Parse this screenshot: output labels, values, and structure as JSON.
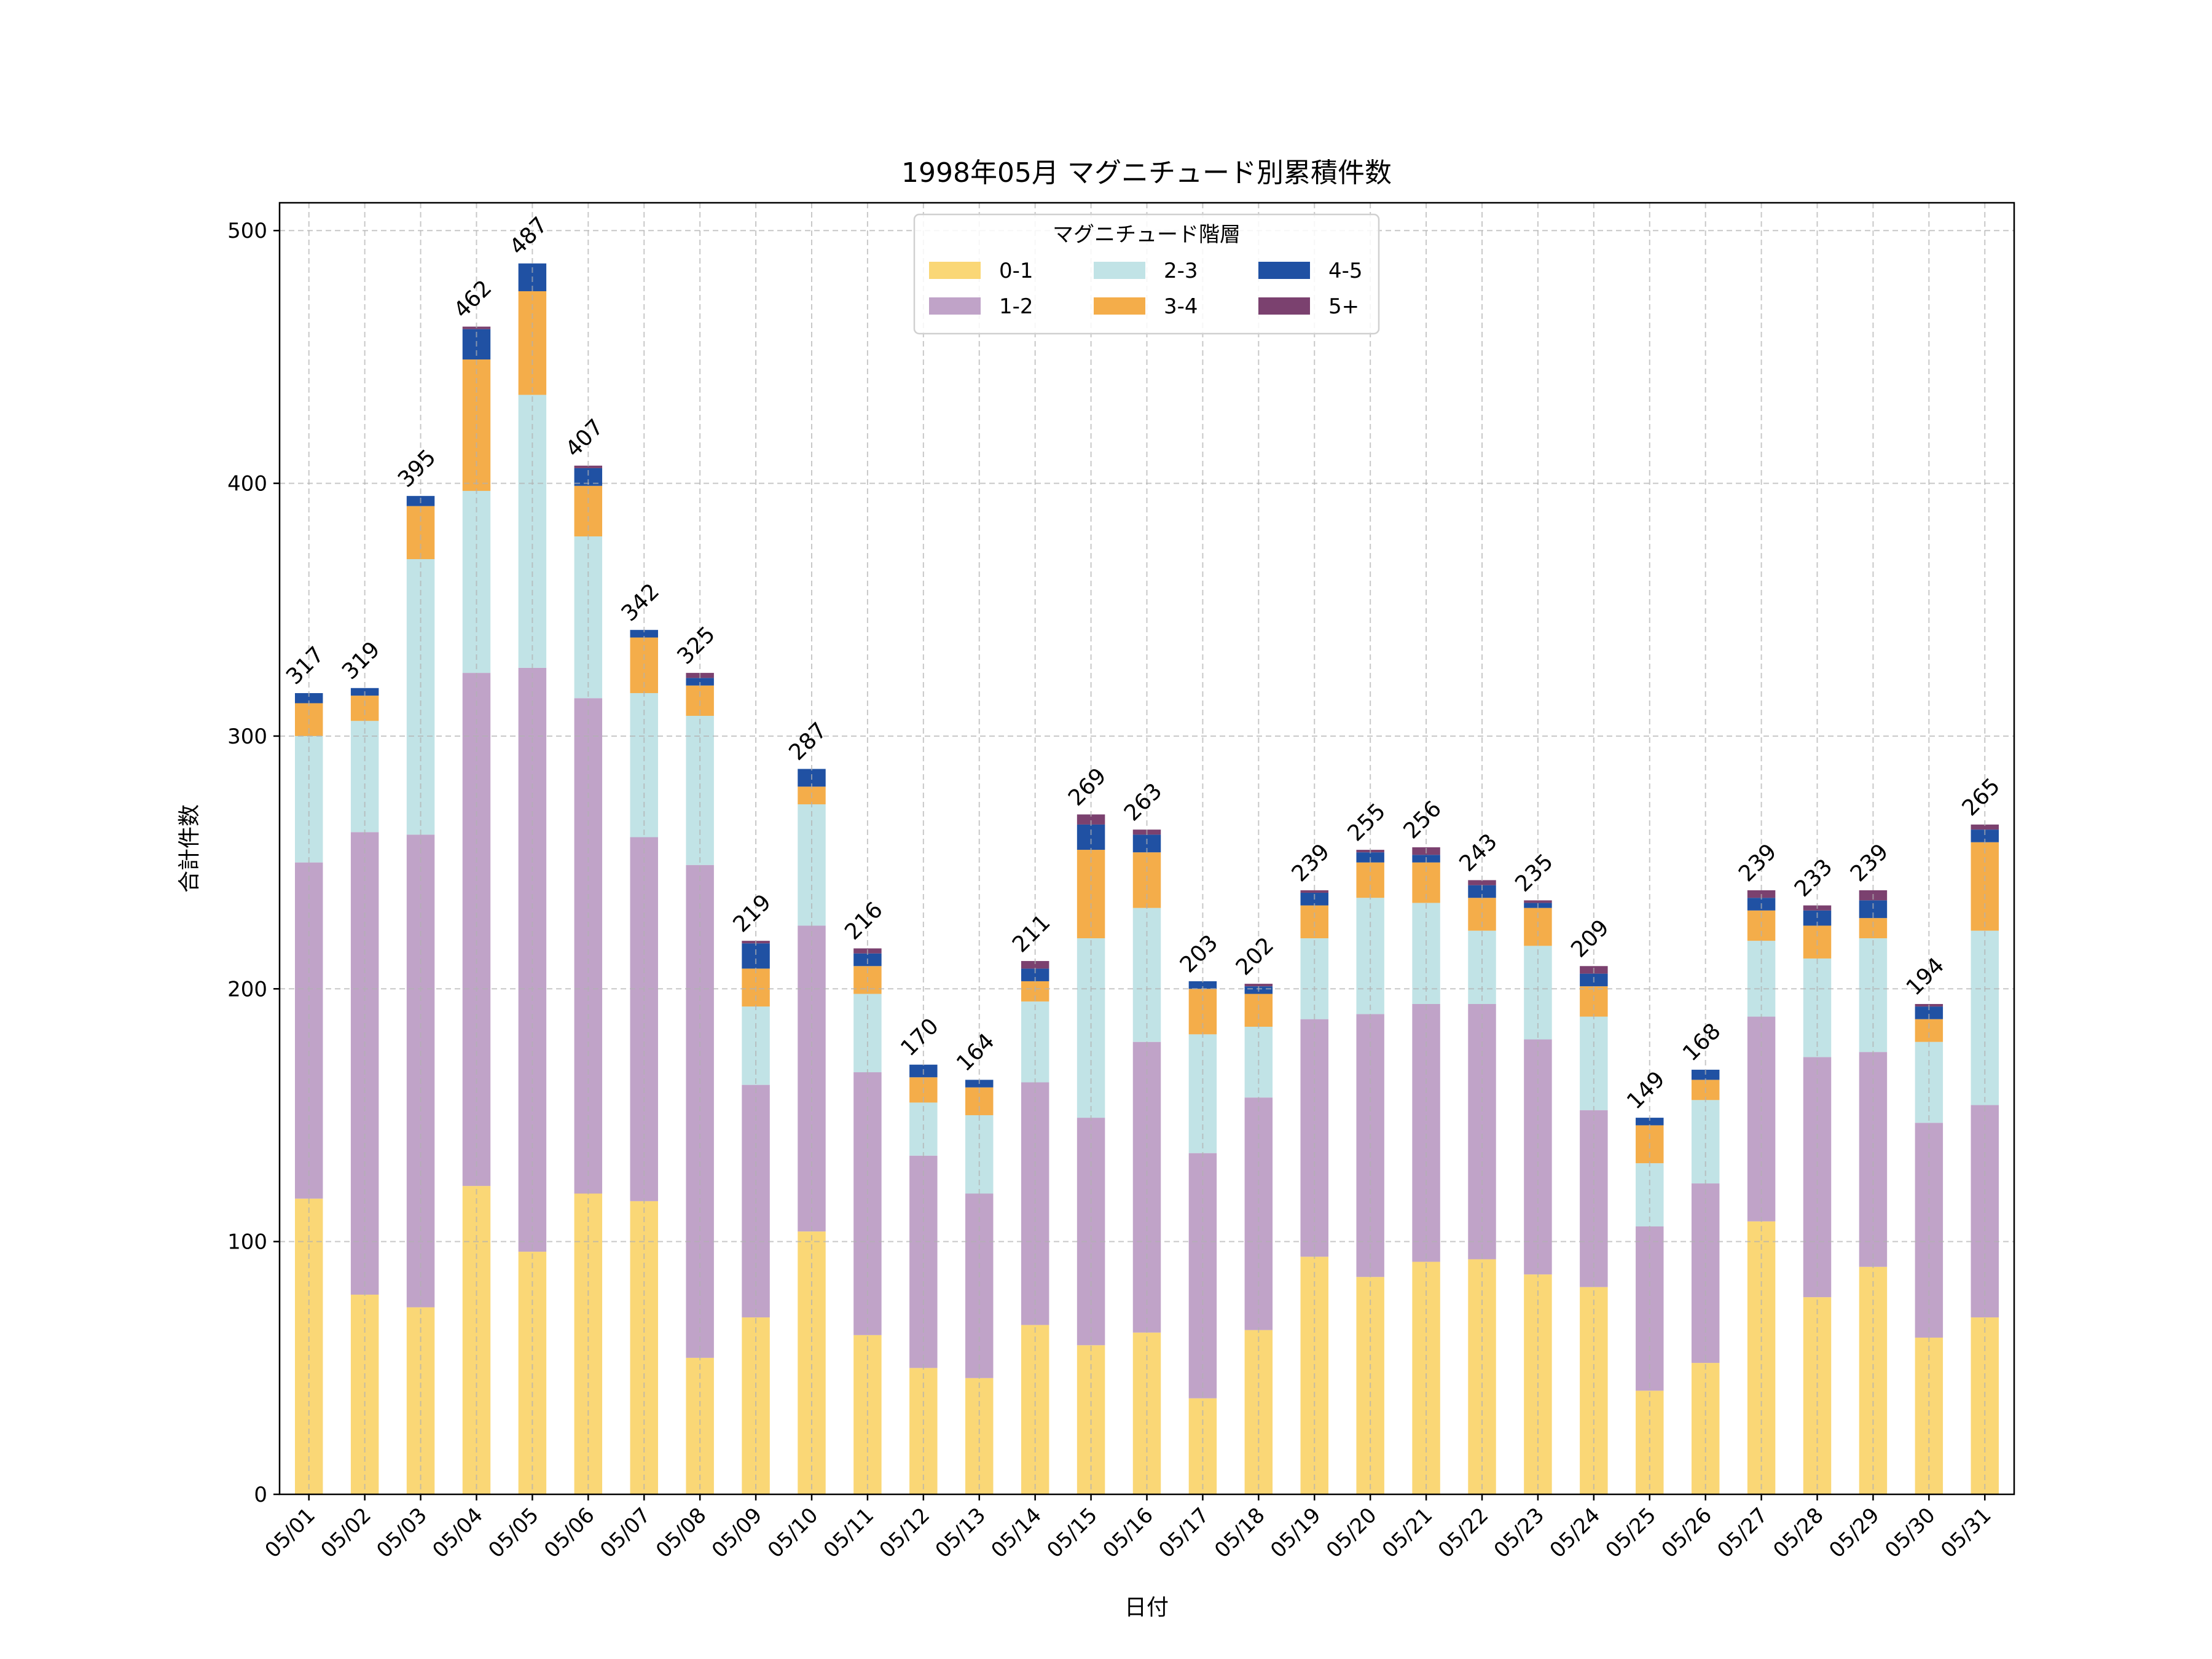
{
  "chart_data": {
    "type": "bar",
    "stacked": true,
    "title": "1998年05月 マグニチュード別累積件数",
    "xlabel": "日付",
    "ylabel": "合計件数",
    "ylim": [
      0,
      511
    ],
    "yticks": [
      0,
      100,
      200,
      300,
      400,
      500
    ],
    "grid": true,
    "legend": {
      "title": "マグニチュード階層",
      "placement": "top-center",
      "columns": 3
    },
    "categories": [
      "05/01",
      "05/02",
      "05/03",
      "05/04",
      "05/05",
      "05/06",
      "05/07",
      "05/08",
      "05/09",
      "05/10",
      "05/11",
      "05/12",
      "05/13",
      "05/14",
      "05/15",
      "05/16",
      "05/17",
      "05/18",
      "05/19",
      "05/20",
      "05/21",
      "05/22",
      "05/23",
      "05/24",
      "05/25",
      "05/26",
      "05/27",
      "05/28",
      "05/29",
      "05/30",
      "05/31"
    ],
    "series": [
      {
        "name": "0-1",
        "color": "#fad776",
        "values": [
          117,
          79,
          74,
          122,
          96,
          119,
          116,
          54,
          70,
          104,
          63,
          50,
          46,
          67,
          59,
          64,
          38,
          65,
          94,
          86,
          92,
          93,
          87,
          82,
          41,
          52,
          108,
          78,
          90,
          62,
          70
        ]
      },
      {
        "name": "1-2",
        "color": "#c0a3c8",
        "values": [
          133,
          183,
          187,
          203,
          231,
          196,
          144,
          195,
          92,
          121,
          104,
          84,
          73,
          96,
          90,
          115,
          97,
          92,
          94,
          104,
          102,
          101,
          93,
          70,
          65,
          71,
          81,
          95,
          85,
          85,
          84
        ]
      },
      {
        "name": "2-3",
        "color": "#c1e3e6",
        "values": [
          50,
          44,
          109,
          72,
          108,
          64,
          57,
          59,
          31,
          48,
          31,
          21,
          31,
          32,
          71,
          53,
          47,
          28,
          32,
          46,
          40,
          29,
          37,
          37,
          25,
          33,
          30,
          39,
          45,
          32,
          69
        ]
      },
      {
        "name": "3-4",
        "color": "#f4ad4a",
        "values": [
          13,
          10,
          21,
          52,
          41,
          20,
          22,
          12,
          15,
          7,
          11,
          10,
          11,
          8,
          35,
          22,
          18,
          13,
          13,
          14,
          16,
          13,
          15,
          12,
          15,
          8,
          12,
          13,
          8,
          9,
          35
        ]
      },
      {
        "name": "4-5",
        "color": "#2051a3",
        "values": [
          4,
          3,
          4,
          12,
          11,
          7,
          3,
          3,
          10,
          7,
          5,
          5,
          3,
          5,
          10,
          7,
          3,
          3,
          5,
          4,
          3,
          5,
          2,
          5,
          3,
          4,
          5,
          6,
          7,
          5,
          5
        ]
      },
      {
        "name": "5+",
        "color": "#7b416f",
        "values": [
          0,
          0,
          0,
          1,
          0,
          1,
          0,
          2,
          1,
          0,
          2,
          0,
          0,
          3,
          4,
          2,
          0,
          1,
          1,
          1,
          3,
          2,
          1,
          3,
          0,
          0,
          3,
          2,
          4,
          1,
          2
        ]
      }
    ],
    "totals": [
      317,
      319,
      395,
      462,
      487,
      407,
      342,
      325,
      219,
      287,
      216,
      170,
      164,
      211,
      269,
      263,
      203,
      202,
      239,
      255,
      256,
      243,
      235,
      209,
      149,
      168,
      239,
      233,
      239,
      194,
      265
    ]
  }
}
